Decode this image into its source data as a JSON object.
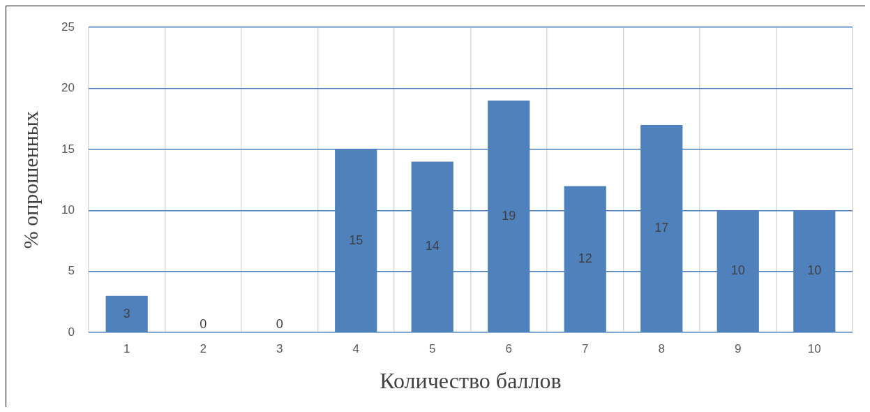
{
  "chart_data": {
    "type": "bar",
    "xlabel": "Количество баллов",
    "ylabel": "% опрошенных",
    "categories": [
      "1",
      "2",
      "3",
      "4",
      "5",
      "6",
      "7",
      "8",
      "9",
      "10"
    ],
    "values": [
      3,
      0,
      0,
      15,
      14,
      19,
      12,
      17,
      10,
      10
    ],
    "color": "#4f81bd",
    "ylim": [
      0,
      25
    ],
    "yticks": [
      0,
      5,
      10,
      15,
      20,
      25
    ],
    "grid": true,
    "data_labels": true,
    "legend": false
  }
}
